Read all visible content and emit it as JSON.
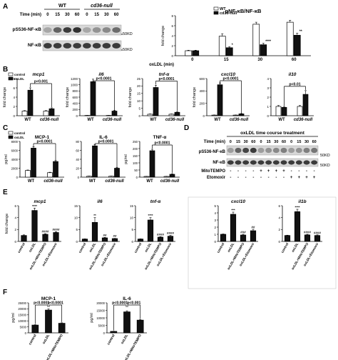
{
  "panels": {
    "A": "A",
    "B": "B",
    "C": "C",
    "D": "D",
    "E": "E",
    "F": "F"
  },
  "sig": {
    "p0001": "p<0.0001",
    "p001": "p<0.001",
    "p0_0001_f": "p<0.0001"
  },
  "chart_data": [
    {
      "id": "A-blot",
      "type": "table",
      "groups": [
        "WT",
        "cd36-null"
      ],
      "time_label": "Time (min)",
      "times": [
        "0",
        "15",
        "30",
        "60",
        "0",
        "15",
        "30",
        "60"
      ],
      "rows": [
        "pS536-NF-κB",
        "NF-κB"
      ],
      "markers": [
        "50KD",
        "50KD"
      ]
    },
    {
      "id": "A-bar",
      "type": "bar",
      "title": "pNF-κB/NF-κB",
      "xlabel": "oxLDL (min)",
      "ylabel": "fold change",
      "categories": [
        "0",
        "15",
        "30",
        "60"
      ],
      "ylim": [
        0,
        8
      ],
      "yticks": [
        "0",
        "2",
        "4",
        "6",
        "8"
      ],
      "series": [
        {
          "name": "WT",
          "values": [
            1.0,
            3.9,
            6.3,
            6.7
          ],
          "errors": [
            0.1,
            0.5,
            0.4,
            0.4
          ],
          "color": "#ffffff"
        },
        {
          "name": "cd36-null",
          "values": [
            1.0,
            1.6,
            2.2,
            4.1
          ],
          "errors": [
            0.1,
            0.2,
            0.3,
            0.4
          ],
          "color": "#111111"
        }
      ],
      "stars": [
        "",
        "*",
        "****",
        "**"
      ]
    },
    {
      "id": "B-mcp1",
      "type": "bar",
      "title": "mcp1",
      "ylabel": "fold change",
      "categories": [
        "WT",
        "cd36-null"
      ],
      "ylim": [
        0,
        8
      ],
      "yticks": [
        "0",
        "2",
        "4",
        "6",
        "8"
      ],
      "series": [
        {
          "name": "control",
          "values": [
            1.0,
            1.0
          ],
          "errors": [
            0.1,
            0.1
          ]
        },
        {
          "name": "oxLDL",
          "values": [
            5.5,
            1.5
          ],
          "errors": [
            0.5,
            0.2
          ]
        }
      ],
      "annotation": "p<0.001"
    },
    {
      "id": "B-il6",
      "type": "bar",
      "title": "il6",
      "ylabel": "fold change",
      "categories": [
        "WT",
        "cd36-null"
      ],
      "ylim": [
        0,
        1200
      ],
      "yticks": [
        "0",
        "200",
        "400",
        "600",
        "800",
        "1000",
        "1200"
      ],
      "series": [
        {
          "name": "control",
          "values": [
            10,
            10
          ],
          "errors": [
            2,
            2
          ]
        },
        {
          "name": "oxLDL",
          "values": [
            1100,
            150
          ],
          "errors": [
            80,
            20
          ]
        }
      ],
      "annotation": "p<0.0001"
    },
    {
      "id": "B-tnfa",
      "type": "bar",
      "title": "tnf-α",
      "ylabel": "fold change",
      "categories": [
        "WT",
        "cd36-null"
      ],
      "ylim": [
        0,
        25
      ],
      "yticks": [
        "0",
        "5",
        "10",
        "15",
        "20",
        "25"
      ],
      "series": [
        {
          "name": "control",
          "values": [
            1.0,
            1.0
          ],
          "errors": [
            0.2,
            0.2
          ]
        },
        {
          "name": "oxLDL",
          "values": [
            19,
            2.3
          ],
          "errors": [
            1.5,
            0.3
          ]
        }
      ],
      "annotation": "p<0.0001"
    },
    {
      "id": "B-cxcl10",
      "type": "bar",
      "title": "cxcl10",
      "ylabel": "fold change",
      "categories": [
        "WT",
        "cd36-null"
      ],
      "ylim": [
        0,
        600
      ],
      "yticks": [
        "0",
        "200",
        "400",
        "600"
      ],
      "series": [
        {
          "name": "control",
          "values": [
            10,
            10
          ],
          "errors": [
            2,
            2
          ]
        },
        {
          "name": "oxLDL",
          "values": [
            500,
            30
          ],
          "errors": [
            30,
            5
          ]
        }
      ],
      "annotation": "p<0.0001"
    },
    {
      "id": "B-il10",
      "type": "bar",
      "title": "il10",
      "ylabel": "",
      "categories": [
        "WT",
        "cd36-null"
      ],
      "ylim": [
        0,
        4
      ],
      "yticks": [
        "0",
        "1",
        "2",
        "3",
        "4"
      ],
      "series": [
        {
          "name": "control",
          "values": [
            1.0,
            1.0
          ],
          "errors": [
            0.1,
            0.1
          ]
        },
        {
          "name": "oxLDL",
          "values": [
            0.9,
            2.3
          ],
          "errors": [
            0.1,
            0.4
          ]
        }
      ],
      "annotation": "p<0.01"
    },
    {
      "id": "C-mcp1",
      "type": "bar",
      "title": "MCP-1",
      "ylabel": "pg/ml",
      "categories": [
        "WT",
        "cd36-null"
      ],
      "ylim": [
        0,
        8000
      ],
      "yticks": [
        "0",
        "2000",
        "4000",
        "6000",
        "8000"
      ],
      "series": [
        {
          "name": "control",
          "values": [
            1500,
            1000
          ],
          "errors": [
            100,
            100
          ]
        },
        {
          "name": "oxLDL",
          "values": [
            6500,
            3500
          ],
          "errors": [
            300,
            200
          ]
        }
      ],
      "annotation": "p<0.0001"
    },
    {
      "id": "C-il6",
      "type": "bar",
      "title": "IL-6",
      "ylabel": "",
      "categories": [
        "WT",
        "cd36-null"
      ],
      "ylim": [
        0,
        80
      ],
      "yticks": [
        "0",
        "20",
        "40",
        "60",
        "80"
      ],
      "series": [
        {
          "name": "control",
          "values": [
            2,
            2
          ],
          "errors": [
            0.5,
            0.5
          ]
        },
        {
          "name": "oxLDL",
          "values": [
            70,
            20
          ],
          "errors": [
            3,
            2
          ]
        }
      ],
      "annotation": "p<0.0001"
    },
    {
      "id": "C-tnfa",
      "type": "bar",
      "title": "TNF-α",
      "ylabel": "pg/ml",
      "categories": [
        "WT",
        "cd36-null"
      ],
      "ylim": [
        0,
        250
      ],
      "yticks": [
        "0",
        "50",
        "100",
        "150",
        "200",
        "250"
      ],
      "series": [
        {
          "name": "control",
          "values": [
            5,
            5
          ],
          "errors": [
            1,
            1
          ]
        },
        {
          "name": "oxLDL",
          "values": [
            185,
            20
          ],
          "errors": [
            10,
            3
          ]
        }
      ],
      "annotation": "p<0.0001"
    },
    {
      "id": "D-blot",
      "type": "table",
      "title": "oxLDL time course treatment",
      "time_label": "Time (min)",
      "times": [
        "0",
        "15",
        "30",
        "60",
        "0",
        "15",
        "30",
        "60",
        "0",
        "15",
        "30",
        "60"
      ],
      "rows": [
        "pS536-NF-κB",
        "NF-κB"
      ],
      "treat_labels": [
        "MitoTEMPO",
        "Etomoxir"
      ],
      "mito": [
        "-",
        "-",
        "-",
        "-",
        "+",
        "+",
        "+",
        "+",
        "-",
        "-",
        "-",
        "-"
      ],
      "eto": [
        "-",
        "-",
        "-",
        "-",
        "-",
        "-",
        "-",
        "-",
        "+",
        "+",
        "+",
        "+"
      ],
      "markers": [
        "50KD",
        "50KD"
      ]
    },
    {
      "id": "E-mcp1",
      "type": "bar",
      "title": "mcp1",
      "ylabel": "fold change",
      "categories": [
        "control",
        "oxLDL",
        "oxLDL+MitoTEMPO",
        "oxLDL+Etomoxir"
      ],
      "ylim": [
        0,
        6
      ],
      "yticks": [
        "0",
        "2",
        "4",
        "6"
      ],
      "values": [
        1.0,
        5.2,
        1.2,
        1.5
      ],
      "errors": [
        0.1,
        0.4,
        0.1,
        0.15
      ],
      "stars": [
        "",
        "****",
        "####",
        "####"
      ]
    },
    {
      "id": "E-il6",
      "type": "bar",
      "title": "il6",
      "ylabel": "",
      "categories": [
        "control",
        "oxLDL",
        "oxLDL+MitoTEMPO",
        "oxLDL+Etomoxir"
      ],
      "ylim": [
        0,
        15
      ],
      "yticks": [
        "0",
        "5",
        "10",
        "15"
      ],
      "values": [
        1.0,
        8.0,
        1.5,
        1.2
      ],
      "errors": [
        0.1,
        2.0,
        0.2,
        0.1
      ],
      "stars": [
        "",
        "**",
        "##",
        "##"
      ]
    },
    {
      "id": "E-tnfa",
      "type": "bar",
      "title": "tnf-α",
      "ylabel": "",
      "categories": [
        "control",
        "oxLDL",
        "oxLDL+MitoTEMPO",
        "oxLDL+Etomoxir"
      ],
      "ylim": [
        0,
        15
      ],
      "yticks": [
        "0",
        "5",
        "10",
        "15"
      ],
      "values": [
        1.0,
        9.0,
        1.8,
        2.2
      ],
      "errors": [
        0.1,
        1.0,
        0.2,
        0.3
      ],
      "stars": [
        "",
        "****",
        "####",
        "####"
      ]
    },
    {
      "id": "E-cxcl10",
      "type": "bar",
      "title": "cxcl10",
      "ylabel": "",
      "categories": [
        "control",
        "oxLDL",
        "oxLDL+MitoTEMPO",
        "oxLDL+Etomoxir"
      ],
      "ylim": [
        0,
        5
      ],
      "yticks": [
        "0",
        "1",
        "2",
        "3",
        "4",
        "5"
      ],
      "values": [
        1.0,
        3.8,
        0.9,
        1.5
      ],
      "errors": [
        0.05,
        0.3,
        0.1,
        0.2
      ],
      "stars": [
        "",
        "***",
        "###",
        "##"
      ]
    },
    {
      "id": "E-il1b",
      "type": "bar",
      "title": "il1b",
      "ylabel": "",
      "categories": [
        "control",
        "oxLDL",
        "oxLDL+MitoTEMPO",
        "oxLDL+Etomoxir"
      ],
      "ylim": [
        0,
        6
      ],
      "yticks": [
        "0",
        "2",
        "4",
        "6"
      ],
      "values": [
        1.0,
        5.0,
        1.1,
        1.0
      ],
      "errors": [
        0.05,
        0.4,
        0.1,
        0.1
      ],
      "stars": [
        "",
        "****",
        "####",
        "####"
      ]
    },
    {
      "id": "F-mcp1",
      "type": "bar",
      "title": "MCP-1",
      "ylabel": "pg/ml",
      "categories": [
        "control",
        "oxLDL",
        "oxLDL+MitoTEMPO"
      ],
      "ylim": [
        0,
        25000
      ],
      "yticks": [
        "0",
        "5000",
        "10000",
        "15000",
        "20000",
        "25000"
      ],
      "values": [
        6500,
        19000,
        8000
      ],
      "errors": [
        300,
        1000,
        400
      ],
      "annotations": [
        "p<0.0001",
        "p<0.0001"
      ]
    },
    {
      "id": "F-il6",
      "type": "bar",
      "title": "IL-6",
      "ylabel": "pg/ml",
      "categories": [
        "control",
        "oxLDL",
        "oxLDL+MitoTEMPO"
      ],
      "ylim": [
        0,
        20000
      ],
      "yticks": [
        "0",
        "5000",
        "10000",
        "15000",
        "20000"
      ],
      "values": [
        1000,
        14000,
        8500
      ],
      "errors": [
        100,
        700,
        500
      ],
      "annotations": [
        "p<0.0001",
        "p<0.001"
      ]
    }
  ],
  "legends": {
    "A": [
      {
        "label": "WT",
        "color": "#ffffff"
      },
      {
        "label": "cd36-null",
        "color": "#111111"
      }
    ],
    "B": [
      {
        "label": "control",
        "color": "#ffffff"
      },
      {
        "label": "oxLDL",
        "color": "#111111"
      }
    ],
    "C": [
      {
        "label": "control",
        "color": "#ffffff"
      },
      {
        "label": "oxLDL",
        "color": "#111111"
      }
    ]
  }
}
